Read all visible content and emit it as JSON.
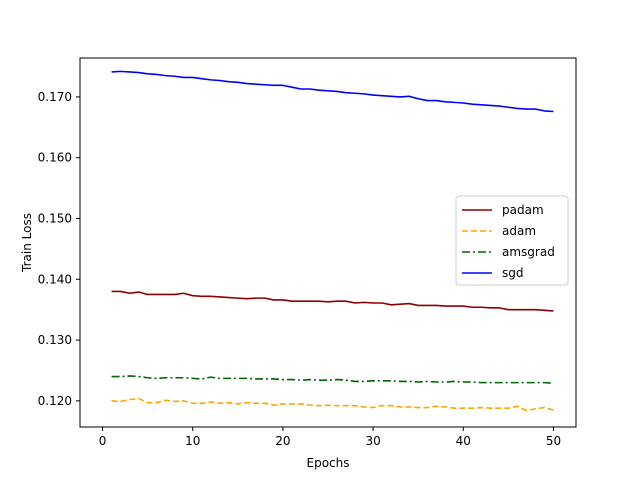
{
  "chart_data": {
    "type": "line",
    "title": "",
    "xlabel": "Epochs",
    "ylabel": "Train Loss",
    "xlim": [
      -2.5,
      52.5
    ],
    "ylim": [
      0.1157,
      0.1764
    ],
    "xticks": [
      "0",
      "10",
      "20",
      "30",
      "40",
      "50"
    ],
    "yticks": [
      "0.120",
      "0.130",
      "0.140",
      "0.150",
      "0.160",
      "0.170"
    ],
    "grid": false,
    "legend": "center-right",
    "x": [
      1,
      2,
      3,
      4,
      5,
      6,
      7,
      8,
      9,
      10,
      11,
      12,
      13,
      14,
      15,
      16,
      17,
      18,
      19,
      20,
      21,
      22,
      23,
      24,
      25,
      26,
      27,
      28,
      29,
      30,
      31,
      32,
      33,
      34,
      35,
      36,
      37,
      38,
      39,
      40,
      41,
      42,
      43,
      44,
      45,
      46,
      47,
      48,
      49,
      50
    ],
    "series": [
      {
        "name": "padam",
        "color": "#8b0000",
        "dash": "solid",
        "values": [
          0.138,
          0.138,
          0.1377,
          0.1379,
          0.1375,
          0.1375,
          0.1375,
          0.1375,
          0.1377,
          0.1373,
          0.1372,
          0.1372,
          0.1371,
          0.137,
          0.1369,
          0.1368,
          0.1369,
          0.1369,
          0.1366,
          0.1366,
          0.1364,
          0.1364,
          0.1364,
          0.1364,
          0.1363,
          0.1364,
          0.1364,
          0.1361,
          0.1362,
          0.1361,
          0.1361,
          0.1358,
          0.1359,
          0.136,
          0.1357,
          0.1357,
          0.1357,
          0.1356,
          0.1356,
          0.1356,
          0.1354,
          0.1354,
          0.1353,
          0.1353,
          0.135,
          0.135,
          0.135,
          0.135,
          0.1349,
          0.1348
        ]
      },
      {
        "name": "adam",
        "color": "#ffa500",
        "dash": "dashed",
        "values": [
          0.12,
          0.1199,
          0.1202,
          0.1204,
          0.1197,
          0.1197,
          0.1201,
          0.1199,
          0.12,
          0.1196,
          0.1196,
          0.1198,
          0.1196,
          0.1197,
          0.1195,
          0.1197,
          0.1196,
          0.1196,
          0.1193,
          0.1195,
          0.1195,
          0.1195,
          0.1193,
          0.1192,
          0.1193,
          0.1192,
          0.1192,
          0.1192,
          0.119,
          0.1189,
          0.1192,
          0.1192,
          0.119,
          0.119,
          0.1189,
          0.1189,
          0.1191,
          0.119,
          0.1188,
          0.1188,
          0.1188,
          0.1189,
          0.1188,
          0.1188,
          0.1188,
          0.1191,
          0.1184,
          0.1187,
          0.1189,
          0.1185
        ]
      },
      {
        "name": "amsgrad",
        "color": "#006400",
        "dash": "dashdot",
        "values": [
          0.124,
          0.124,
          0.1241,
          0.124,
          0.1238,
          0.1237,
          0.1238,
          0.1238,
          0.1238,
          0.1237,
          0.1236,
          0.1239,
          0.1237,
          0.1237,
          0.1237,
          0.1237,
          0.1236,
          0.1236,
          0.1236,
          0.1235,
          0.1235,
          0.1234,
          0.1235,
          0.1234,
          0.1234,
          0.1235,
          0.1234,
          0.1232,
          0.1232,
          0.1233,
          0.1233,
          0.1233,
          0.1232,
          0.1232,
          0.1231,
          0.1232,
          0.1231,
          0.1231,
          0.1232,
          0.1231,
          0.1231,
          0.123,
          0.123,
          0.123,
          0.123,
          0.123,
          0.123,
          0.123,
          0.123,
          0.1229
        ]
      },
      {
        "name": "sgd",
        "color": "#0000ff",
        "dash": "solid",
        "values": [
          0.1741,
          0.1742,
          0.1741,
          0.174,
          0.1738,
          0.1737,
          0.1735,
          0.1734,
          0.1732,
          0.1732,
          0.173,
          0.1728,
          0.1727,
          0.1725,
          0.1724,
          0.1722,
          0.1721,
          0.172,
          0.1719,
          0.1719,
          0.1716,
          0.1713,
          0.1713,
          0.1711,
          0.171,
          0.1709,
          0.1707,
          0.1706,
          0.1705,
          0.1703,
          0.1702,
          0.1701,
          0.17,
          0.1701,
          0.1697,
          0.1694,
          0.1694,
          0.1692,
          0.1691,
          0.169,
          0.1688,
          0.1687,
          0.1686,
          0.1685,
          0.1683,
          0.1681,
          0.168,
          0.168,
          0.1677,
          0.1676
        ]
      }
    ]
  }
}
